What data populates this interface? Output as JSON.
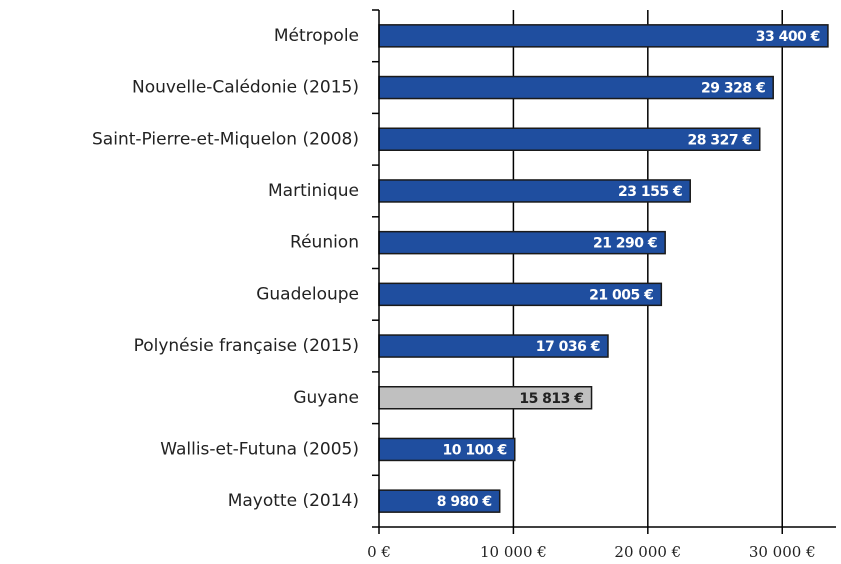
{
  "chart_data": {
    "type": "barh",
    "categories": [
      "Métropole",
      "Nouvelle-Calédonie (2015)",
      "Saint-Pierre-et-Miquelon (2008)",
      "Martinique",
      "Réunion",
      "Guadeloupe",
      "Polynésie française (2015)",
      "Guyane",
      "Wallis-et-Futuna (2005)",
      "Mayotte (2014)"
    ],
    "values": [
      33400,
      29328,
      28327,
      23155,
      21290,
      21005,
      17036,
      15813,
      10100,
      8980
    ],
    "value_labels": [
      "33 400 €",
      "29 328 €",
      "28 327 €",
      "23 155 €",
      "21 290 €",
      "21 005 €",
      "17 036 €",
      "15 813 €",
      "10 100 €",
      "8 980 €"
    ],
    "colors": [
      "#1f4e9f",
      "#1f4e9f",
      "#1f4e9f",
      "#1f4e9f",
      "#1f4e9f",
      "#1f4e9f",
      "#1f4e9f",
      "#c0c0c0",
      "#1f4e9f",
      "#1f4e9f"
    ],
    "xlim": [
      0,
      34000
    ],
    "xticks": [
      {
        "value": 0,
        "label": "0 €"
      },
      {
        "value": 10000,
        "label": "10 000 €"
      },
      {
        "value": 20000,
        "label": "20 000 €"
      },
      {
        "value": 30000,
        "label": "30 000 €"
      }
    ],
    "grid": true
  }
}
